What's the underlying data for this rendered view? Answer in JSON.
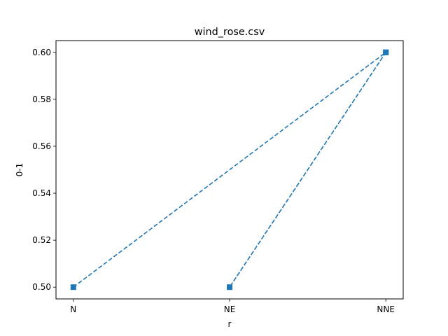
{
  "chart_data": {
    "type": "line",
    "title": "wind_rose.csv",
    "xlabel": "r",
    "ylabel": "0-1",
    "categories": [
      "N",
      "NE",
      "NNE"
    ],
    "yticks": [
      "0.50",
      "0.52",
      "0.54",
      "0.56",
      "0.58",
      "0.60"
    ],
    "ylim": [
      0.495,
      0.605
    ],
    "grid": false,
    "line_style": "dashed",
    "marker": "square",
    "color": "#1f77b4",
    "points": [
      {
        "x": "N",
        "y": 0.5
      },
      {
        "x": "NNE",
        "y": 0.6
      },
      {
        "x": "NE",
        "y": 0.5
      },
      {
        "x": "NNE",
        "y": 0.6
      }
    ]
  }
}
